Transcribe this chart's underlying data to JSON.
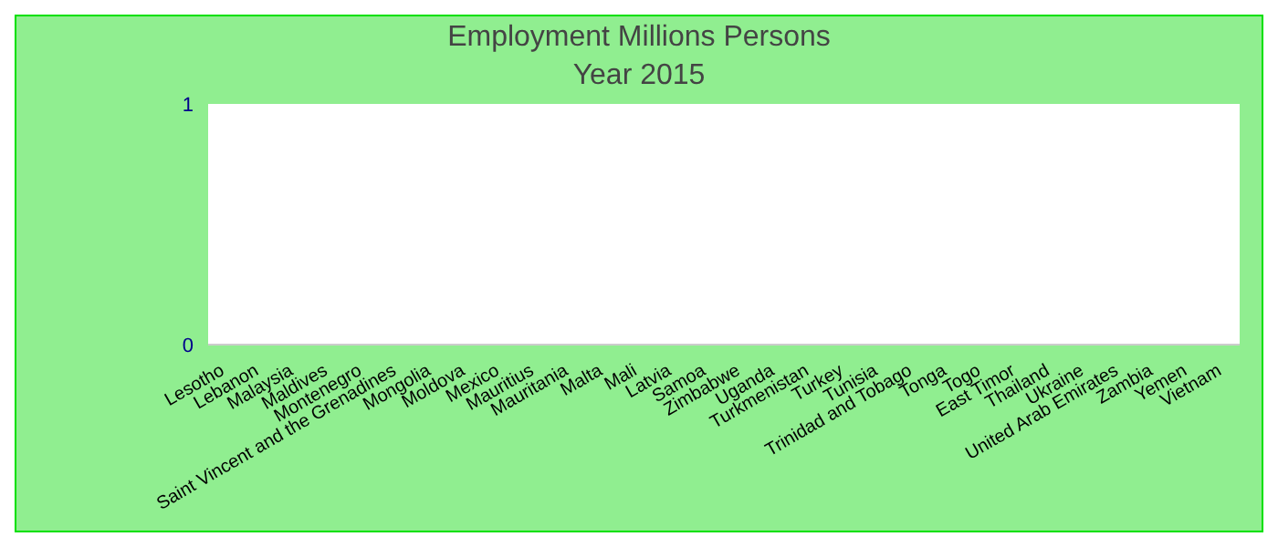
{
  "chart_data": {
    "type": "bar",
    "title": "Employment Millions Persons",
    "subtitle": "Year 2015",
    "categories": [
      "Lesotho",
      "Lebanon",
      "Malaysia",
      "Maldives",
      "Montenegro",
      "Saint Vincent and the Grenadines",
      "Mongolia",
      "Moldova",
      "Mexico",
      "Mauritius",
      "Mauritania",
      "Malta",
      "Mali",
      "Latvia",
      "Samoa",
      "Zimbabwe",
      "Uganda",
      "Turkmenistan",
      "Turkey",
      "Tunisia",
      "Trinidad and Tobago",
      "Tonga",
      "Togo",
      "East Timor",
      "Thailand",
      "Ukraine",
      "United Arab Emirates",
      "Zambia",
      "Yemen",
      "Vietnam"
    ],
    "values": [
      0,
      0,
      0,
      0,
      0,
      0,
      0,
      0,
      0,
      0,
      0,
      0,
      0,
      0,
      0,
      0,
      0,
      0,
      0,
      0,
      0,
      0,
      0,
      0,
      0,
      0,
      0,
      0,
      0,
      0
    ],
    "ylim": [
      0,
      1
    ],
    "yticks": [
      0,
      1
    ],
    "grid": false,
    "legend": false
  }
}
